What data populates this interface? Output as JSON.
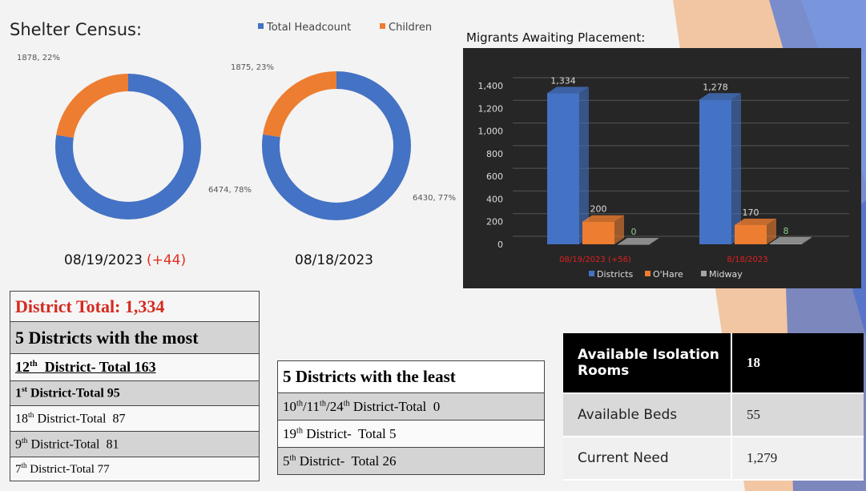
{
  "title": "Shelter Census:",
  "chart_data": [
    {
      "type": "donut",
      "legend": [
        "Total Headcount",
        "Children"
      ],
      "colors": [
        "#4472c4",
        "#ed7d31"
      ],
      "values": [
        6474,
        1878
      ],
      "value_labels": [
        "6474, 78%",
        "1878, 22%"
      ],
      "title": "08/19/2023",
      "annotation": "(+44)"
    },
    {
      "type": "donut",
      "colors": [
        "#4472c4",
        "#ed7d31"
      ],
      "values": [
        6430,
        1875
      ],
      "value_labels": [
        "6430, 77%",
        "1875, 23%"
      ],
      "title": "08/18/2023"
    },
    {
      "type": "bar",
      "title": "Migrants Awaiting Placement:",
      "categories": [
        "08/19/2023 (+56)",
        "8/18/2023"
      ],
      "series": [
        {
          "name": "Districts",
          "color": "#4472c4",
          "values": [
            1334,
            1278
          ],
          "value_labels": [
            "1,334",
            "1,278"
          ]
        },
        {
          "name": "O'Hare",
          "color": "#ed7d31",
          "values": [
            200,
            170
          ]
        },
        {
          "name": "Midway",
          "color": "#a5a5a5",
          "values": [
            0,
            8
          ]
        }
      ],
      "ylim": [
        0,
        1400
      ],
      "yticks": [
        0,
        200,
        400,
        600,
        800,
        {
          "value": 1000,
          "label": "1,000"
        },
        {
          "value": 1200,
          "label": "1,200"
        },
        {
          "value": 1400,
          "label": "1,400"
        }
      ],
      "grid": true
    }
  ],
  "most_table": {
    "total": "District Total: 1,334",
    "header": "5 Districts with the most",
    "rows": [
      [
        "12",
        "th",
        "  District- Total 163"
      ],
      [
        "1",
        "st",
        " District-Total 95"
      ],
      [
        "18",
        "th",
        " District-Total  87"
      ],
      [
        "9",
        "th",
        " District-Total  81"
      ],
      [
        "7",
        "th",
        " District-Total 77"
      ]
    ]
  },
  "least_table": {
    "header": "5 Districts with the least",
    "rows": [
      [
        "10",
        "th",
        "/11",
        "th",
        "/24",
        "th",
        " District-Total  0"
      ],
      [
        "19",
        "th",
        " District-  Total 5"
      ],
      [
        "5",
        "th",
        " District-  Total 26"
      ]
    ]
  },
  "beds_table": {
    "rows": [
      [
        "Available Isolation Rooms",
        "18"
      ],
      [
        "Available Beds",
        "55"
      ],
      [
        "Current Need",
        "1,279"
      ]
    ]
  }
}
